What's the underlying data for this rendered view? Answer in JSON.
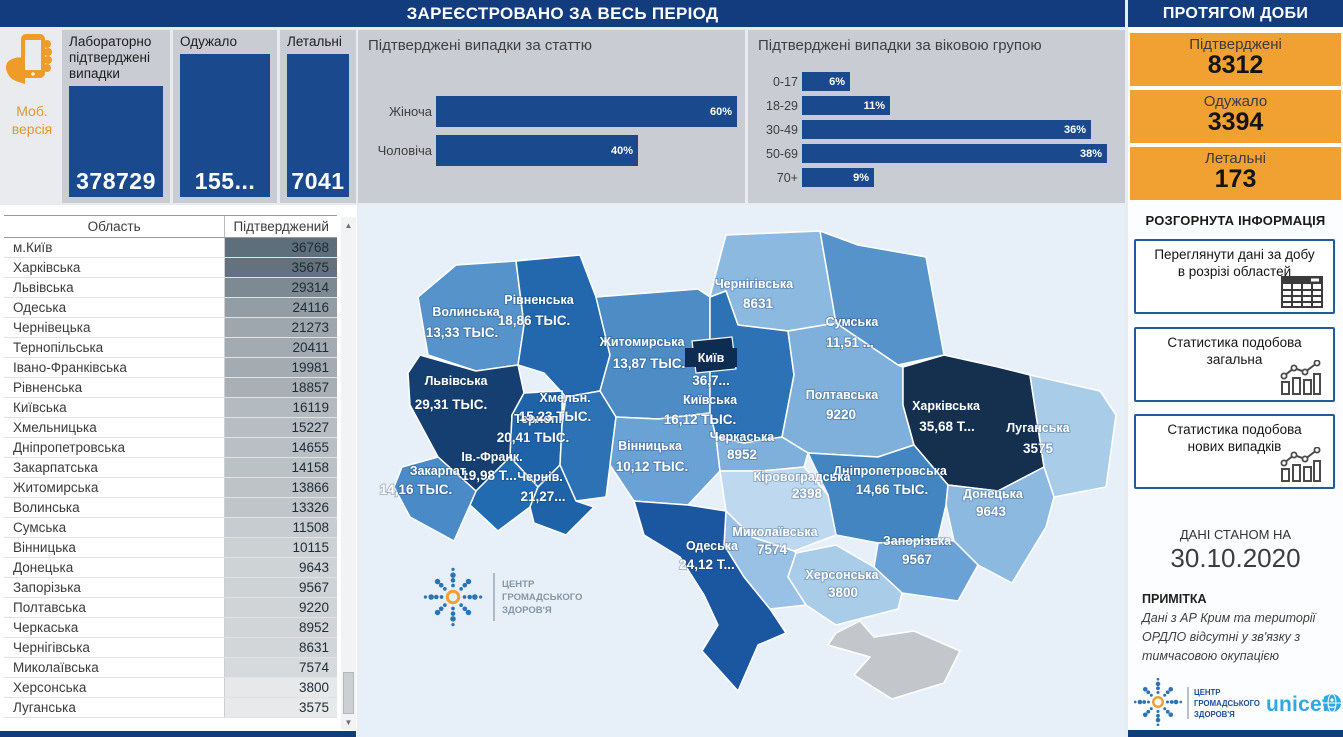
{
  "header": {
    "registered_title": "ЗАРЕЄСТРОВАНО ЗА ВЕСЬ ПЕРІОД",
    "daily_title": "ПРОТЯГОМ ДОБИ"
  },
  "mobile": {
    "label_line1": "Моб.",
    "label_line2": "версія"
  },
  "colors": {
    "navy": "#123c7d",
    "bar_blue": "#1a4a8d",
    "orange": "#f0a132",
    "panel_gray": "#c9cdd3",
    "map_bg": "#e7f0f9",
    "kyiv_dark": "#0d2c52",
    "crimea_gray": "#c3c7cb",
    "unicef_blue": "#2fa9df",
    "phc_blue": "#1b4e9b"
  },
  "totals": {
    "cards": [
      {
        "label": "Лабораторно підтверджені випадки",
        "value": "378729"
      },
      {
        "label": "Одужало",
        "value": "155..."
      },
      {
        "label": "Летальні",
        "value": "7041"
      }
    ]
  },
  "gender_chart": {
    "title": "Підтверджені випадки за статтю",
    "bars": [
      {
        "label": "Жіноча",
        "pct": 60,
        "text": "60%"
      },
      {
        "label": "Чоловіча",
        "pct": 40,
        "text": "40%"
      }
    ]
  },
  "age_chart": {
    "title": "Підтверджені випадки за віковою групою",
    "bars": [
      {
        "label": "0-17",
        "pct": 6,
        "text": "6%"
      },
      {
        "label": "18-29",
        "pct": 11,
        "text": "11%"
      },
      {
        "label": "30-49",
        "pct": 36,
        "text": "36%"
      },
      {
        "label": "50-69",
        "pct": 38,
        "text": "38%"
      },
      {
        "label": "70+",
        "pct": 9,
        "text": "9%"
      }
    ]
  },
  "daily": {
    "cards": [
      {
        "label": "Підтверджені",
        "value": "8312"
      },
      {
        "label": "Одужало",
        "value": "3394"
      },
      {
        "label": "Летальні",
        "value": "173"
      }
    ]
  },
  "info": {
    "title": "РОЗГОРНУТА ІНФОРМАЦІЯ",
    "buttons": [
      {
        "label": "Переглянути дані за добу в розрізі областей",
        "icon": "table-icon"
      },
      {
        "label": "Статистика подобова загальна",
        "icon": "line-chart-icon"
      },
      {
        "label": "Статистика подобова нових випадків",
        "icon": "line-chart-icon"
      }
    ]
  },
  "as_of": {
    "label": "ДАНІ СТАНОМ НА",
    "date": "30.10.2020"
  },
  "note": {
    "title": "ПРИМІТКА",
    "text": "Дані з АР Крим та території ОРДЛО відсутні у зв'язку з тимчасовою окупацією"
  },
  "logos": {
    "phc_lines": [
      "ЦЕНТР",
      "ГРОМАДСЬКОГО",
      "ЗДОРОВ'Я"
    ],
    "unicef": "unicef"
  },
  "table": {
    "columns": [
      "Область",
      "Підтверджений"
    ],
    "rows": [
      [
        "м.Київ",
        36768
      ],
      [
        "Харківська",
        35675
      ],
      [
        "Львівська",
        29314
      ],
      [
        "Одеська",
        24116
      ],
      [
        "Чернівецька",
        21273
      ],
      [
        "Тернопільська",
        20411
      ],
      [
        "Івано-Франківська",
        19981
      ],
      [
        "Рівненська",
        18857
      ],
      [
        "Київська",
        16119
      ],
      [
        "Хмельницька",
        15227
      ],
      [
        "Дніпропетровська",
        14655
      ],
      [
        "Закарпатська",
        14158
      ],
      [
        "Житомирська",
        13866
      ],
      [
        "Волинська",
        13326
      ],
      [
        "Сумська",
        11508
      ],
      [
        "Вінницька",
        10115
      ],
      [
        "Донецька",
        9643
      ],
      [
        "Запорізька",
        9567
      ],
      [
        "Полтавська",
        9220
      ],
      [
        "Черкаська",
        8952
      ],
      [
        "Чернігівська",
        8631
      ],
      [
        "Миколаївська",
        7574
      ],
      [
        "Херсонська",
        3800
      ],
      [
        "Луганська",
        3575
      ]
    ]
  },
  "map": {
    "kyiv_city": {
      "id": "kyiv_city",
      "name": "Київ",
      "value": "36,7...",
      "fill": "#0d2c52"
    },
    "regions": [
      {
        "id": "chernihiv",
        "name": "Чернігівська",
        "value": "8631",
        "fill": "#8cb9e0"
      },
      {
        "id": "sumy",
        "name": "Сумська",
        "value": "11,51 ...",
        "fill": "#5793cb"
      },
      {
        "id": "volyn",
        "name": "Волинська",
        "value": "13,33 ТЫС.",
        "fill": "#5793cb"
      },
      {
        "id": "rivne",
        "name": "Рівненська",
        "value": "18,86 ТЫС.",
        "fill": "#2368ac"
      },
      {
        "id": "zhytomyr",
        "name": "Житомирська",
        "value": "13,87 ТЫС.",
        "fill": "#4e8cc6"
      },
      {
        "id": "kyiv_obl",
        "name": "Київська",
        "value": "16,12 ТЫС.",
        "fill": "#2d72b4"
      },
      {
        "id": "poltava",
        "name": "Полтавська",
        "value": "9220",
        "fill": "#7fb0dc"
      },
      {
        "id": "kharkiv",
        "name": "Харківська",
        "value": "35,68 Т...",
        "fill": "#15304f"
      },
      {
        "id": "luhansk",
        "name": "Луганська",
        "value": "3575",
        "fill": "#a9cce9"
      },
      {
        "id": "lviv",
        "name": "Львівська",
        "value": "29,31 ТЫС.",
        "fill": "#153f70"
      },
      {
        "id": "ternopil",
        "name": "Терноп.",
        "value": "20,41 ТЫС.",
        "fill": "#1e62a8"
      },
      {
        "id": "khmelnytskyi",
        "name": "Хмельн.",
        "value": "15,23 ТЫС.",
        "fill": "#2d72b4"
      },
      {
        "id": "vinnytsia",
        "name": "Вінницька",
        "value": "10,12 ТЫС.",
        "fill": "#6ba2d5"
      },
      {
        "id": "cherkasy",
        "name": "Черкаська",
        "value": "8952",
        "fill": "#7fb0dc"
      },
      {
        "id": "dnipro",
        "name": "Дніпропетровська",
        "value": "14,66 ТЫС.",
        "fill": "#4285c1"
      },
      {
        "id": "donetsk",
        "name": "Донецька",
        "value": "9643",
        "fill": "#8cb9e0"
      },
      {
        "id": "ivano",
        "name": "Ів.-Франк.",
        "value": "19,98 Т...",
        "fill": "#226bb1"
      },
      {
        "id": "zakarpattia",
        "name": "Закарпат.",
        "value": "14,16 ТЫС.",
        "fill": "#4a8ac6"
      },
      {
        "id": "chernivtsi",
        "name": "Чернів.",
        "value": "21,27...",
        "fill": "#1e62a8"
      },
      {
        "id": "kirovohrad",
        "name": "Кіровоградська",
        "value": "2398",
        "fill": "#bdd8ef"
      },
      {
        "id": "zaporizhzhia",
        "name": "Запорізька",
        "value": "9567",
        "fill": "#6ba2d5"
      },
      {
        "id": "mykolaiv",
        "name": "Миколаївська",
        "value": "7574",
        "fill": "#98c1e5"
      },
      {
        "id": "kherson",
        "name": "Херсонська",
        "value": "3800",
        "fill": "#a9cce9"
      },
      {
        "id": "odesa",
        "name": "Одеська",
        "value": "24,12 Т...",
        "fill": "#1b57a0"
      },
      {
        "id": "crimea",
        "name": "",
        "value": "",
        "fill": "#c3c7cb"
      }
    ]
  },
  "chart_data": [
    {
      "type": "bar",
      "orientation": "horizontal",
      "title": "Підтверджені випадки за статтю",
      "categories": [
        "Жіноча",
        "Чоловіча"
      ],
      "values": [
        60,
        40
      ],
      "unit": "%",
      "xlim": [
        0,
        60
      ],
      "grid": false
    },
    {
      "type": "bar",
      "orientation": "horizontal",
      "title": "Підтверджені випадки за віковою групою",
      "categories": [
        "0-17",
        "18-29",
        "30-49",
        "50-69",
        "70+"
      ],
      "values": [
        6,
        11,
        36,
        38,
        9
      ],
      "unit": "%",
      "xlim": [
        0,
        38
      ],
      "grid": false
    }
  ]
}
